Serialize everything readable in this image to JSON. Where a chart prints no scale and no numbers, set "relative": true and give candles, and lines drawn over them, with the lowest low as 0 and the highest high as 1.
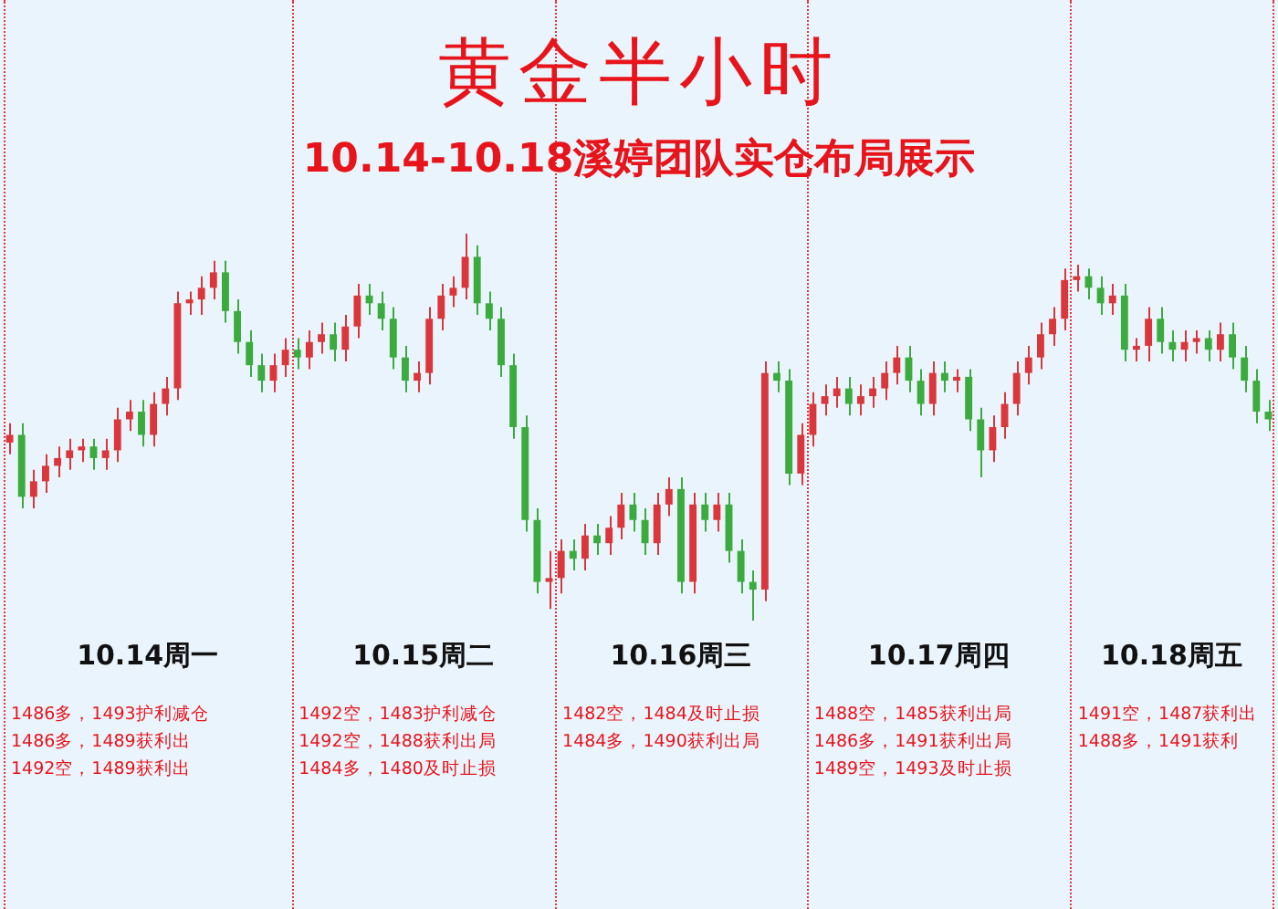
{
  "chart_data": {
    "type": "candlestick",
    "title": "黄金半小时",
    "subtitle": "10.14-10.18溪婷团队实仓布局展示",
    "relative": true,
    "categories": [
      null,
      null,
      null,
      null,
      null,
      null,
      null,
      null,
      null,
      null,
      null,
      null,
      null,
      null,
      null,
      null,
      null,
      null,
      null,
      null,
      null,
      null,
      null,
      null,
      null,
      null,
      null,
      null,
      null,
      null,
      null,
      null,
      null,
      null,
      null,
      null,
      null,
      null,
      null,
      null,
      null,
      null,
      null,
      null,
      null,
      null,
      null,
      null,
      null,
      null,
      null,
      null,
      null,
      null,
      null,
      null,
      null,
      null,
      null,
      null,
      null,
      null,
      null,
      null,
      null,
      null,
      null,
      null,
      null,
      null,
      null,
      null,
      null,
      null,
      null,
      null,
      null,
      null,
      null,
      null,
      null,
      null,
      null,
      null,
      null,
      null,
      null,
      null,
      null,
      null,
      null,
      null,
      null,
      null,
      null,
      null,
      null,
      null,
      null,
      null,
      null,
      null,
      null,
      null,
      null,
      null
    ],
    "ohlc": [
      [
        0.46,
        0.51,
        0.43,
        0.48
      ],
      [
        0.48,
        0.51,
        0.29,
        0.32
      ],
      [
        0.32,
        0.39,
        0.29,
        0.36
      ],
      [
        0.36,
        0.43,
        0.33,
        0.4
      ],
      [
        0.4,
        0.45,
        0.37,
        0.42
      ],
      [
        0.42,
        0.47,
        0.39,
        0.44
      ],
      [
        0.44,
        0.47,
        0.41,
        0.45
      ],
      [
        0.45,
        0.47,
        0.39,
        0.42
      ],
      [
        0.42,
        0.47,
        0.39,
        0.44
      ],
      [
        0.44,
        0.55,
        0.41,
        0.52
      ],
      [
        0.52,
        0.57,
        0.49,
        0.54
      ],
      [
        0.54,
        0.57,
        0.45,
        0.48
      ],
      [
        0.48,
        0.59,
        0.45,
        0.56
      ],
      [
        0.56,
        0.63,
        0.53,
        0.6
      ],
      [
        0.6,
        0.85,
        0.57,
        0.82
      ],
      [
        0.82,
        0.85,
        0.79,
        0.83
      ],
      [
        0.83,
        0.89,
        0.79,
        0.86
      ],
      [
        0.86,
        0.93,
        0.83,
        0.9
      ],
      [
        0.9,
        0.93,
        0.77,
        0.8
      ],
      [
        0.8,
        0.83,
        0.69,
        0.72
      ],
      [
        0.72,
        0.75,
        0.63,
        0.66
      ],
      [
        0.66,
        0.69,
        0.59,
        0.62
      ],
      [
        0.62,
        0.69,
        0.59,
        0.66
      ],
      [
        0.66,
        0.73,
        0.63,
        0.7
      ],
      [
        0.7,
        0.73,
        0.65,
        0.68
      ],
      [
        0.68,
        0.75,
        0.65,
        0.72
      ],
      [
        0.72,
        0.77,
        0.69,
        0.74
      ],
      [
        0.74,
        0.77,
        0.67,
        0.7
      ],
      [
        0.7,
        0.79,
        0.67,
        0.76
      ],
      [
        0.76,
        0.87,
        0.73,
        0.84
      ],
      [
        0.84,
        0.87,
        0.79,
        0.82
      ],
      [
        0.82,
        0.85,
        0.75,
        0.78
      ],
      [
        0.78,
        0.81,
        0.65,
        0.68
      ],
      [
        0.68,
        0.71,
        0.59,
        0.62
      ],
      [
        0.62,
        0.67,
        0.59,
        0.64
      ],
      [
        0.64,
        0.81,
        0.61,
        0.78
      ],
      [
        0.78,
        0.87,
        0.75,
        0.84
      ],
      [
        0.84,
        0.89,
        0.81,
        0.86
      ],
      [
        0.86,
        1.0,
        0.83,
        0.94
      ],
      [
        0.94,
        0.97,
        0.79,
        0.82
      ],
      [
        0.82,
        0.85,
        0.75,
        0.78
      ],
      [
        0.78,
        0.81,
        0.63,
        0.66
      ],
      [
        0.66,
        0.69,
        0.47,
        0.5
      ],
      [
        0.5,
        0.53,
        0.23,
        0.26
      ],
      [
        0.26,
        0.29,
        0.07,
        0.1
      ],
      [
        0.1,
        0.18,
        0.03,
        0.11
      ],
      [
        0.11,
        0.21,
        0.07,
        0.18
      ],
      [
        0.18,
        0.21,
        0.13,
        0.16
      ],
      [
        0.16,
        0.25,
        0.13,
        0.22
      ],
      [
        0.22,
        0.25,
        0.17,
        0.2
      ],
      [
        0.2,
        0.27,
        0.17,
        0.24
      ],
      [
        0.24,
        0.33,
        0.21,
        0.3
      ],
      [
        0.3,
        0.33,
        0.23,
        0.26
      ],
      [
        0.26,
        0.29,
        0.17,
        0.2
      ],
      [
        0.2,
        0.33,
        0.17,
        0.3
      ],
      [
        0.3,
        0.37,
        0.27,
        0.34
      ],
      [
        0.34,
        0.37,
        0.07,
        0.1
      ],
      [
        0.1,
        0.33,
        0.07,
        0.3
      ],
      [
        0.3,
        0.33,
        0.23,
        0.26
      ],
      [
        0.26,
        0.33,
        0.23,
        0.3
      ],
      [
        0.3,
        0.33,
        0.15,
        0.18
      ],
      [
        0.18,
        0.21,
        0.07,
        0.1
      ],
      [
        0.1,
        0.13,
        0.0,
        0.08
      ],
      [
        0.08,
        0.67,
        0.05,
        0.64
      ],
      [
        0.64,
        0.67,
        0.59,
        0.62
      ],
      [
        0.62,
        0.65,
        0.35,
        0.38
      ],
      [
        0.38,
        0.51,
        0.35,
        0.48
      ],
      [
        0.48,
        0.59,
        0.45,
        0.56
      ],
      [
        0.56,
        0.61,
        0.53,
        0.58
      ],
      [
        0.58,
        0.63,
        0.55,
        0.6
      ],
      [
        0.6,
        0.63,
        0.53,
        0.56
      ],
      [
        0.56,
        0.61,
        0.53,
        0.58
      ],
      [
        0.58,
        0.63,
        0.55,
        0.6
      ],
      [
        0.6,
        0.67,
        0.57,
        0.64
      ],
      [
        0.64,
        0.71,
        0.61,
        0.68
      ],
      [
        0.68,
        0.71,
        0.59,
        0.62
      ],
      [
        0.62,
        0.65,
        0.53,
        0.56
      ],
      [
        0.56,
        0.67,
        0.53,
        0.64
      ],
      [
        0.64,
        0.67,
        0.59,
        0.62
      ],
      [
        0.62,
        0.65,
        0.59,
        0.63
      ],
      [
        0.63,
        0.65,
        0.49,
        0.52
      ],
      [
        0.52,
        0.55,
        0.37,
        0.44
      ],
      [
        0.44,
        0.53,
        0.41,
        0.5
      ],
      [
        0.5,
        0.59,
        0.47,
        0.56
      ],
      [
        0.56,
        0.67,
        0.53,
        0.64
      ],
      [
        0.64,
        0.71,
        0.61,
        0.68
      ],
      [
        0.68,
        0.77,
        0.65,
        0.74
      ],
      [
        0.74,
        0.81,
        0.71,
        0.78
      ],
      [
        0.78,
        0.91,
        0.75,
        0.88
      ],
      [
        0.88,
        0.92,
        0.85,
        0.89
      ],
      [
        0.89,
        0.91,
        0.83,
        0.86
      ],
      [
        0.86,
        0.89,
        0.79,
        0.82
      ],
      [
        0.82,
        0.87,
        0.79,
        0.84
      ],
      [
        0.84,
        0.87,
        0.67,
        0.7
      ],
      [
        0.7,
        0.73,
        0.67,
        0.71
      ],
      [
        0.71,
        0.81,
        0.67,
        0.78
      ],
      [
        0.78,
        0.81,
        0.69,
        0.72
      ],
      [
        0.72,
        0.75,
        0.67,
        0.7
      ],
      [
        0.7,
        0.75,
        0.67,
        0.72
      ],
      [
        0.72,
        0.75,
        0.69,
        0.73
      ],
      [
        0.73,
        0.75,
        0.67,
        0.7
      ],
      [
        0.7,
        0.77,
        0.67,
        0.74
      ],
      [
        0.74,
        0.77,
        0.65,
        0.68
      ],
      [
        0.68,
        0.71,
        0.59,
        0.62
      ],
      [
        0.62,
        0.65,
        0.51,
        0.54
      ],
      [
        0.54,
        0.57,
        0.49,
        0.52
      ]
    ],
    "colors": [
      "#d9373b",
      "#3bab3e",
      "#d9373b",
      "#d9373b",
      "#d9373b",
      "#d9373b",
      "#d9373b",
      "#3bab3e",
      "#d9373b",
      "#d9373b",
      "#d9373b",
      "#3bab3e",
      "#d9373b",
      "#d9373b",
      "#d9373b",
      "#d9373b",
      "#d9373b",
      "#d9373b",
      "#3bab3e",
      "#3bab3e",
      "#3bab3e",
      "#3bab3e",
      "#d9373b",
      "#d9373b",
      "#3bab3e",
      "#d9373b",
      "#d9373b",
      "#3bab3e",
      "#d9373b",
      "#d9373b",
      "#3bab3e",
      "#3bab3e",
      "#3bab3e",
      "#3bab3e",
      "#d9373b",
      "#d9373b",
      "#d9373b",
      "#d9373b",
      "#d9373b",
      "#3bab3e",
      "#3bab3e",
      "#3bab3e",
      "#3bab3e",
      "#3bab3e",
      "#3bab3e",
      "#d9373b",
      "#d9373b",
      "#3bab3e",
      "#d9373b",
      "#3bab3e",
      "#d9373b",
      "#d9373b",
      "#3bab3e",
      "#3bab3e",
      "#d9373b",
      "#d9373b",
      "#3bab3e",
      "#d9373b",
      "#3bab3e",
      "#d9373b",
      "#3bab3e",
      "#3bab3e",
      "#3bab3e",
      "#d9373b",
      "#3bab3e",
      "#3bab3e",
      "#d9373b",
      "#d9373b",
      "#d9373b",
      "#d9373b",
      "#3bab3e",
      "#d9373b",
      "#d9373b",
      "#d9373b",
      "#d9373b",
      "#3bab3e",
      "#3bab3e",
      "#d9373b",
      "#3bab3e",
      "#d9373b",
      "#3bab3e",
      "#3bab3e",
      "#d9373b",
      "#d9373b",
      "#d9373b",
      "#d9373b",
      "#d9373b",
      "#d9373b",
      "#d9373b",
      "#d9373b",
      "#3bab3e",
      "#3bab3e",
      "#d9373b",
      "#3bab3e",
      "#d9373b",
      "#d9373b",
      "#3bab3e",
      "#3bab3e",
      "#d9373b",
      "#d9373b",
      "#3bab3e",
      "#d9373b",
      "#3bab3e",
      "#3bab3e",
      "#3bab3e",
      "#3bab3e"
    ],
    "annotations": [
      "10.14周一",
      "10.15周二",
      "10.16周三",
      "10.17周四",
      "10.18周五",
      "1486多，1493护利减仓\n1486多，1489获利出\n1492空，1489获利出",
      "1492空，1483护利减仓\n1492空，1488获利出局\n1484多，1480及时止损",
      "1482空，1484及时止损\n1484多，1490获利出局",
      "1488空，1485获利出局\n1486多，1491获利出局\n1489空，1493及时止损",
      "1491空，1487获利出\n1488多，1491获利"
    ]
  }
}
